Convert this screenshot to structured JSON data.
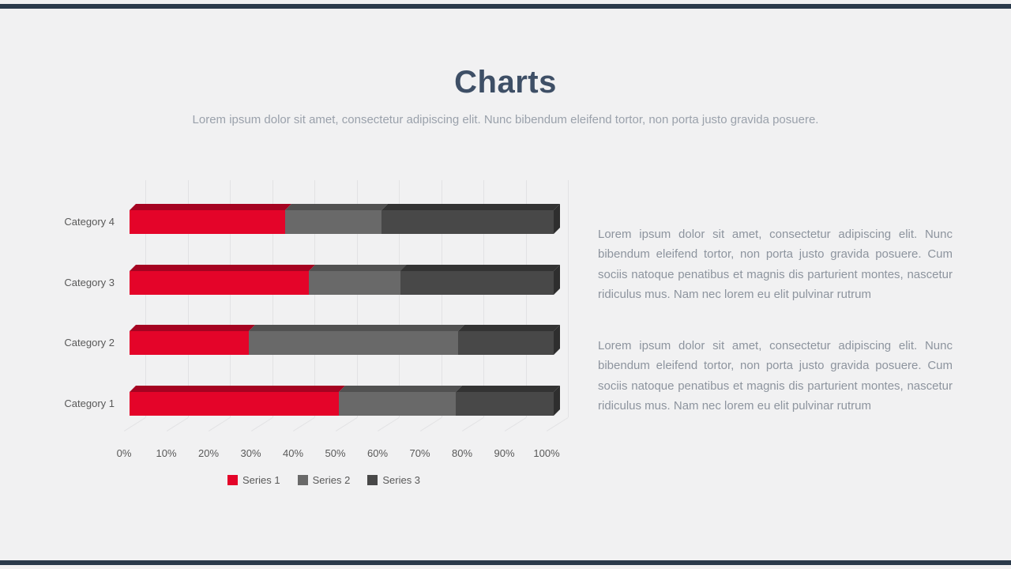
{
  "slide": {
    "title": "Charts",
    "subtitle": "Lorem ipsum dolor sit amet, consectetur adipiscing elit. Nunc bibendum eleifend tortor, non porta justo gravida posuere.",
    "accent_bar_color": "#2b3a4b",
    "background_color": "#f1f1f2",
    "title_color": "#3e4f66"
  },
  "chart_data": {
    "type": "bar",
    "orientation": "horizontal",
    "stacking": "percent",
    "title": "",
    "xlabel": "",
    "ylabel": "",
    "xlim": [
      0,
      100
    ],
    "grid": true,
    "legend_position": "bottom",
    "categories": [
      "Category 1",
      "Category 2",
      "Category 3",
      "Category 4"
    ],
    "series": [
      {
        "name": "Series 1",
        "color": "#e40429",
        "top_color": "#a50321",
        "values_pct": [
          49.4,
          28.1,
          42.2,
          36.6
        ]
      },
      {
        "name": "Series 2",
        "color": "#696969",
        "top_color": "#515151",
        "values_pct": [
          27.6,
          49.4,
          21.7,
          22.8
        ]
      },
      {
        "name": "Series 3",
        "color": "#484848",
        "top_color": "#333333",
        "side_color": "#2e2e2e",
        "values_pct": [
          23.0,
          22.5,
          36.1,
          40.6
        ]
      }
    ],
    "x_ticks": [
      "0%",
      "10%",
      "20%",
      "30%",
      "40%",
      "50%",
      "60%",
      "70%",
      "80%",
      "90%",
      "100%"
    ]
  },
  "body_text": {
    "paragraph_1": "Lorem ipsum dolor sit amet, consectetur adipiscing elit. Nunc bibendum eleifend tortor, non porta justo gravida posuere. Cum sociis natoque penatibus et magnis dis parturient montes, nascetur ridiculus mus. Nam nec lorem eu elit pulvinar rutrum",
    "paragraph_2": "Lorem ipsum dolor sit amet, consectetur adipiscing elit. Nunc bibendum eleifend tortor, non porta justo gravida posuere. Cum sociis natoque penatibus et magnis dis parturient montes, nascetur ridiculus mus. Nam nec lorem eu elit pulvinar rutrum"
  }
}
